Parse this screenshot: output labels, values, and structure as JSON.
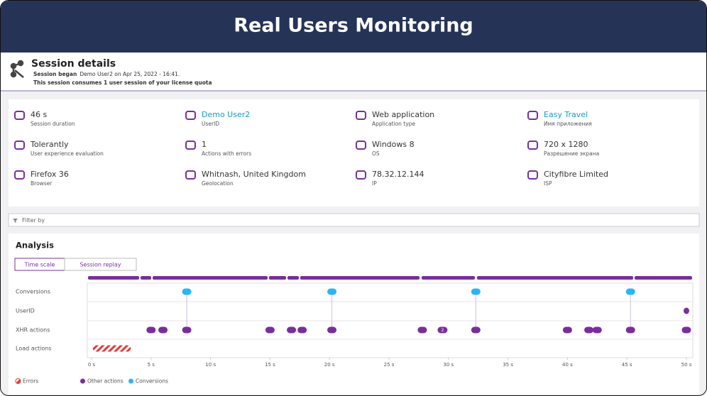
{
  "header": {
    "title": "Real Users Monitoring"
  },
  "session": {
    "title": "Session details",
    "began_label": "Session began",
    "began_text": "Demo User2 on Apr 25, 2022 - 16:41.",
    "quota": "This session consumes 1 user session of your license quota"
  },
  "info": [
    {
      "value": "46 s",
      "label": "Session duration"
    },
    {
      "value": "Demo User2",
      "label": "UserID",
      "link": true
    },
    {
      "value": "Web application",
      "label": "Application type"
    },
    {
      "value": "Easy Travel",
      "label": "Имя приложения",
      "link": true
    },
    {
      "value": "Tolerantly",
      "label": "User experience evaluation"
    },
    {
      "value": "1",
      "label": "Actions with errors"
    },
    {
      "value": "Windows 8",
      "label": "OS"
    },
    {
      "value": "720 x 1280",
      "label": "Разрешение экрана"
    },
    {
      "value": "Firefox 36",
      "label": "Browser"
    },
    {
      "value": "Whitnash, United Kingdom",
      "label": "Geolocation"
    },
    {
      "value": "78.32.12.144",
      "label": "IP"
    },
    {
      "value": "Cityfibre Limited",
      "label": "ISP"
    }
  ],
  "filter": {
    "placeholder": "Filter by"
  },
  "analysis": {
    "title": "Analysis",
    "tabs": [
      "Time scale",
      "Session replay"
    ],
    "timeline": {
      "xlim": [
        0,
        50
      ],
      "xticks": [
        {
          "value": 0,
          "label": "0 s"
        },
        {
          "value": 5,
          "label": "5 s"
        },
        {
          "value": 10,
          "label": "10 s"
        },
        {
          "value": 15,
          "label": "15 s"
        },
        {
          "value": 20,
          "label": "20 s"
        },
        {
          "value": 25,
          "label": "25 s"
        },
        {
          "value": 30,
          "label": "30 s"
        },
        {
          "value": 35,
          "label": "35 s"
        },
        {
          "value": 40,
          "label": "40 s"
        },
        {
          "value": 45,
          "label": "45 s"
        },
        {
          "value": 50,
          "label": "50 s"
        }
      ],
      "rows": [
        {
          "label": "Conversions",
          "color": "#29b6f6",
          "events": [
            8,
            20.2,
            32.3,
            45.3
          ]
        },
        {
          "label": "UserID",
          "color": "#7b2d9e",
          "events": [
            50
          ]
        },
        {
          "label": "XHR actions",
          "color": "#7b2d9e",
          "events": [
            5,
            6,
            8,
            15,
            16.8,
            17.7,
            20.2,
            27.8,
            32.3,
            40,
            41.8,
            42.5,
            45.3,
            50
          ]
        },
        {
          "label": "Load actions",
          "color": "#e53935",
          "errors": [
            {
              "start": 0.1,
              "end": 3.3
            }
          ]
        }
      ],
      "badge": {
        "time": 29.5,
        "count": 2
      },
      "legend": [
        {
          "label": "Errors",
          "color": "#e53935"
        },
        {
          "label": "Other actions",
          "color": "#7b2d9e"
        },
        {
          "label": "Conversions",
          "color": "#29b6f6"
        }
      ]
    }
  }
}
